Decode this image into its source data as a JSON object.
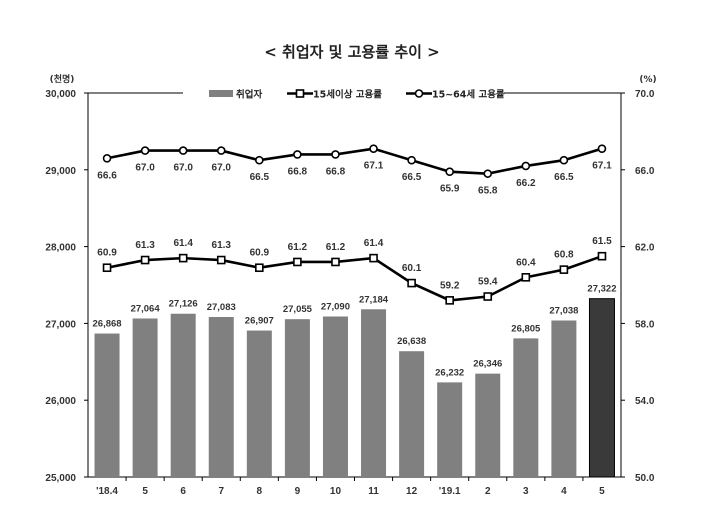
{
  "chart_data": {
    "type": "bar+line",
    "title": "< 취업자 및 고용률 추이 >",
    "left_axis": {
      "unit": "(천명)",
      "min": 25000,
      "max": 30000,
      "ticks": [
        "25,000",
        "26,000",
        "27,000",
        "28,000",
        "29,000",
        "30,000"
      ]
    },
    "right_axis": {
      "unit": "(%)",
      "min": 50.0,
      "max": 70.0,
      "ticks": [
        "50.0",
        "54.0",
        "58.0",
        "62.0",
        "66.0",
        "70.0"
      ]
    },
    "categories": [
      "'18.4",
      "5",
      "6",
      "7",
      "8",
      "9",
      "10",
      "11",
      "12",
      "'19.1",
      "2",
      "3",
      "4",
      "5"
    ],
    "series": [
      {
        "name": "취업자",
        "type": "bar",
        "axis": "left",
        "color": "#808080",
        "highlight_last_color": "#3a3a3a",
        "values": [
          26868,
          27064,
          27126,
          27083,
          26907,
          27055,
          27090,
          27184,
          26638,
          26232,
          26346,
          26805,
          27038,
          27322
        ],
        "labels": [
          "26,868",
          "27,064",
          "27,126",
          "27,083",
          "26,907",
          "27,055",
          "27,090",
          "27,184",
          "26,638",
          "26,232",
          "26,346",
          "26,805",
          "27,038",
          "27,322"
        ]
      },
      {
        "name": "15세이상 고용률",
        "type": "line",
        "axis": "right",
        "marker": "square",
        "values": [
          60.9,
          61.3,
          61.4,
          61.3,
          60.9,
          61.2,
          61.2,
          61.4,
          60.1,
          59.2,
          59.4,
          60.4,
          60.8,
          61.5
        ],
        "labels": [
          "60.9",
          "61.3",
          "61.4",
          "61.3",
          "60.9",
          "61.2",
          "61.2",
          "61.4",
          "60.1",
          "59.2",
          "59.4",
          "60.4",
          "60.8",
          "61.5"
        ]
      },
      {
        "name": "15~64세 고용률",
        "type": "line",
        "axis": "right",
        "marker": "circle",
        "values": [
          66.6,
          67.0,
          67.0,
          67.0,
          66.5,
          66.8,
          66.8,
          67.1,
          66.5,
          65.9,
          65.8,
          66.2,
          66.5,
          67.1
        ],
        "labels": [
          "66.6",
          "67.0",
          "67.0",
          "67.0",
          "66.5",
          "66.8",
          "66.8",
          "67.1",
          "66.5",
          "65.9",
          "65.8",
          "66.2",
          "66.5",
          "67.1"
        ]
      }
    ],
    "legend": "top"
  }
}
